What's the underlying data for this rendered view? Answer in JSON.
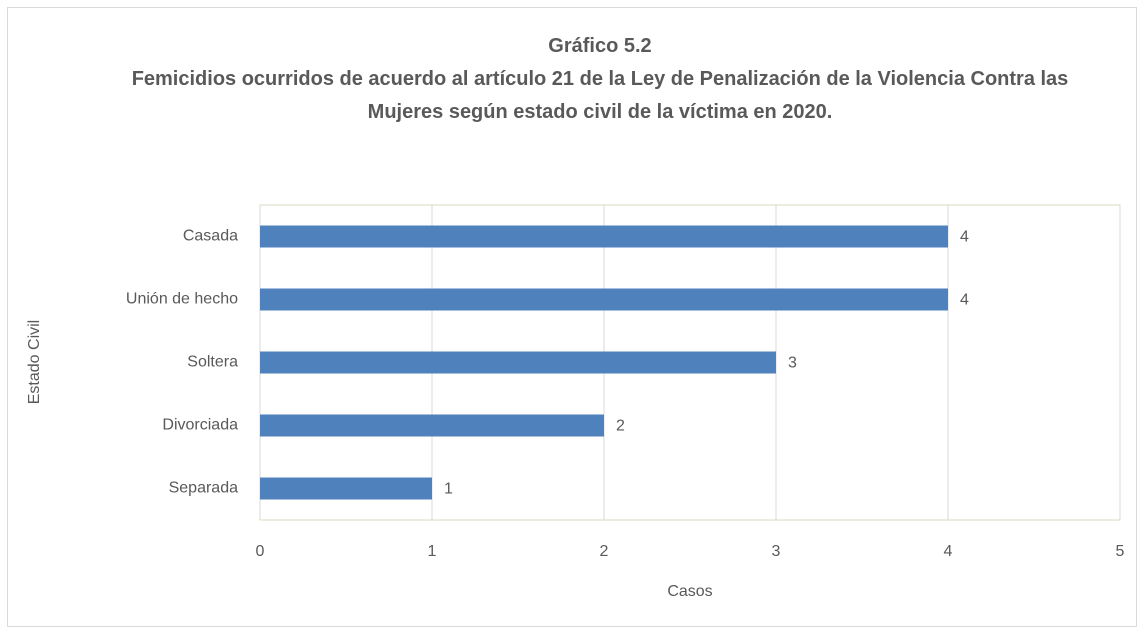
{
  "chart_data": {
    "type": "bar",
    "orientation": "horizontal",
    "title": "Gráfico 5.2",
    "subtitle": "Femicidios ocurridos de acuerdo al artículo 21 de la Ley de Penalización de la Violencia Contra las Mujeres según estado civil de la víctima en 2020.",
    "categories": [
      "Casada",
      "Unión de hecho",
      "Soltera",
      "Divorciada",
      "Separada"
    ],
    "values": [
      4,
      4,
      3,
      2,
      1
    ],
    "color": "#4f81bd",
    "xlim": [
      0,
      5
    ],
    "xticks": [
      0,
      1,
      2,
      3,
      4,
      5
    ],
    "grid": true,
    "xlabel": "Casos",
    "ylabel": "Estado Civil"
  }
}
